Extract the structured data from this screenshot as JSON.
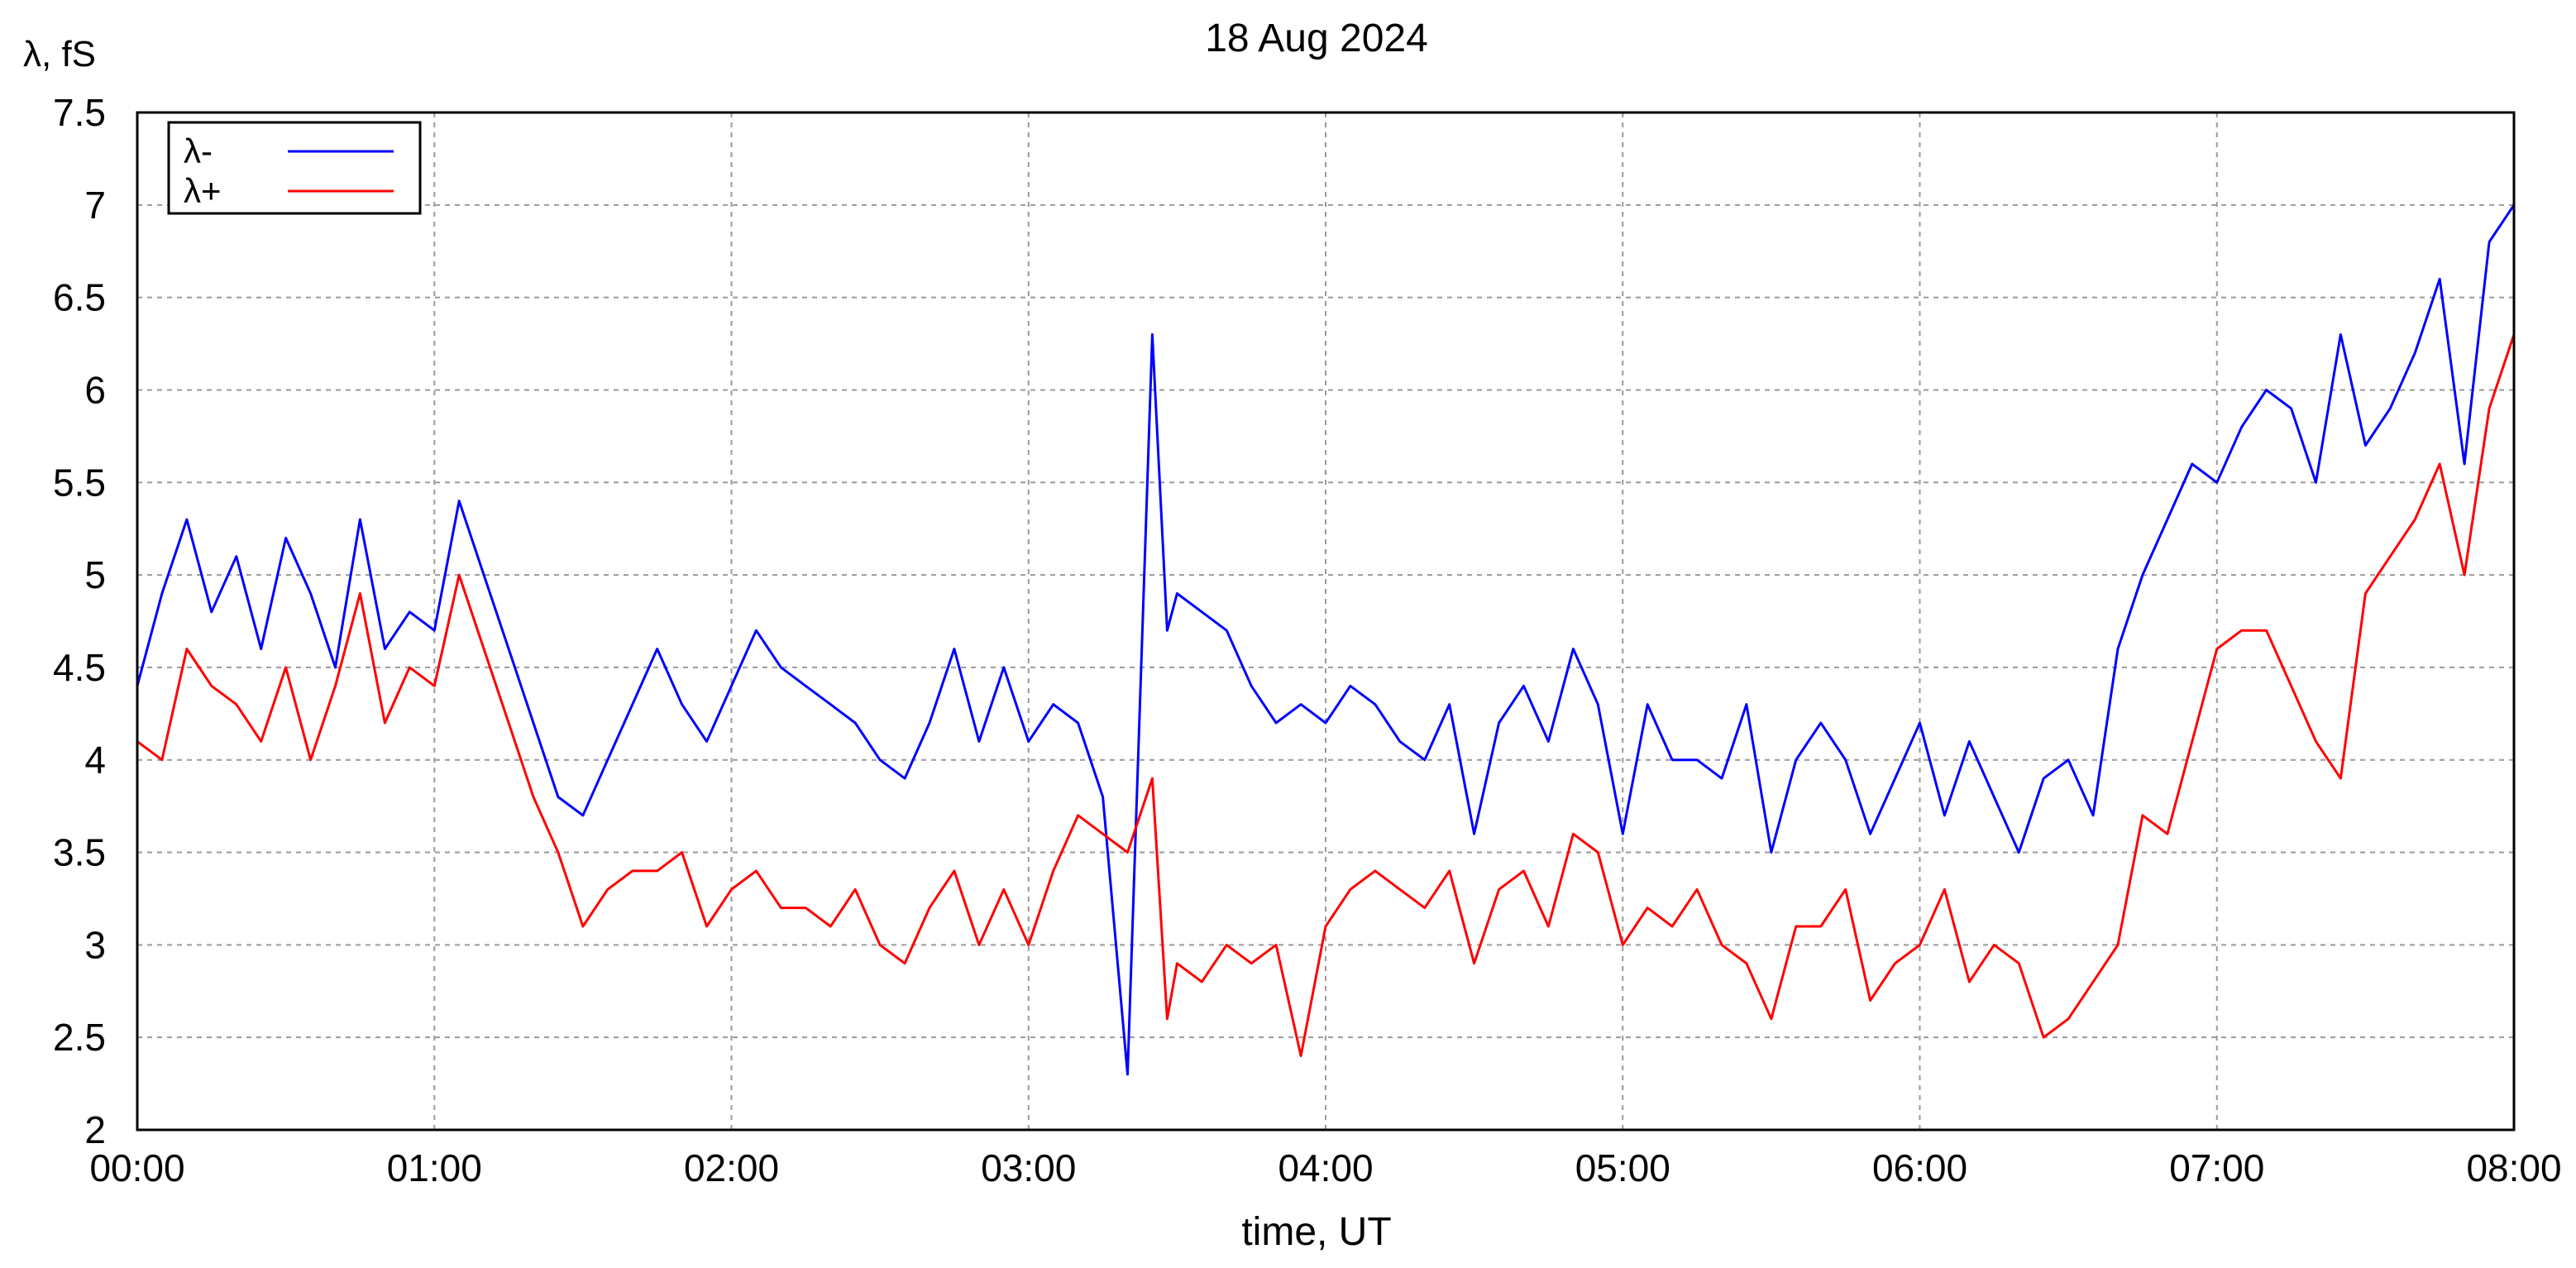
{
  "chart_data": {
    "type": "line",
    "title": "18 Aug 2024",
    "xlabel": "time, UT",
    "ylabel": "λ, fS",
    "xlim": [
      "00:00",
      "08:00"
    ],
    "ylim": [
      2,
      7.5
    ],
    "x_ticks": [
      "00:00",
      "01:00",
      "02:00",
      "03:00",
      "04:00",
      "05:00",
      "06:00",
      "07:00",
      "08:00"
    ],
    "y_ticks": [
      "2",
      "2.5",
      "3",
      "3.5",
      "4",
      "4.5",
      "5",
      "5.5",
      "6",
      "6.5",
      "7",
      "7.5"
    ],
    "grid": true,
    "legend_position": "top-left",
    "series": [
      {
        "name": "λ-",
        "color": "#0000ff",
        "x": [
          "00:00",
          "00:05",
          "00:10",
          "00:15",
          "00:20",
          "00:25",
          "00:30",
          "00:35",
          "00:40",
          "00:45",
          "00:50",
          "00:55",
          "01:00",
          "01:05",
          "01:10",
          "01:15",
          "01:20",
          "01:25",
          "01:30",
          "01:35",
          "01:40",
          "01:45",
          "01:50",
          "01:55",
          "02:00",
          "02:05",
          "02:10",
          "02:15",
          "02:20",
          "02:25",
          "02:30",
          "02:35",
          "02:40",
          "02:45",
          "02:50",
          "02:55",
          "03:00",
          "03:05",
          "03:10",
          "03:15",
          "03:20",
          "03:25",
          "03:28",
          "03:30",
          "03:35",
          "03:40",
          "03:45",
          "03:50",
          "03:55",
          "04:00",
          "04:05",
          "04:10",
          "04:15",
          "04:20",
          "04:25",
          "04:30",
          "04:35",
          "04:40",
          "04:45",
          "04:50",
          "04:55",
          "05:00",
          "05:05",
          "05:10",
          "05:15",
          "05:20",
          "05:25",
          "05:30",
          "05:35",
          "05:40",
          "05:45",
          "05:50",
          "05:55",
          "06:00",
          "06:05",
          "06:10",
          "06:15",
          "06:20",
          "06:25",
          "06:30",
          "06:35",
          "06:40",
          "06:45",
          "06:50",
          "06:55",
          "07:00",
          "07:05",
          "07:10",
          "07:15",
          "07:20",
          "07:25",
          "07:30",
          "07:35",
          "07:40",
          "07:45",
          "07:50",
          "07:55",
          "08:00"
        ],
        "values": [
          4.4,
          4.9,
          5.3,
          4.8,
          5.1,
          4.6,
          5.2,
          4.9,
          4.5,
          5.3,
          4.6,
          4.8,
          4.7,
          5.4,
          5.0,
          4.6,
          4.2,
          3.8,
          3.7,
          4.0,
          4.3,
          4.6,
          4.3,
          4.1,
          4.4,
          4.7,
          4.5,
          4.4,
          4.3,
          4.2,
          4.0,
          3.9,
          4.2,
          4.6,
          4.1,
          4.5,
          4.1,
          4.3,
          4.2,
          3.8,
          2.3,
          6.3,
          4.7,
          4.9,
          4.8,
          4.7,
          4.4,
          4.2,
          4.3,
          4.2,
          4.4,
          4.3,
          4.1,
          4.0,
          4.3,
          3.6,
          4.2,
          4.4,
          4.1,
          4.6,
          4.3,
          3.6,
          4.3,
          4.0,
          4.0,
          3.9,
          4.3,
          3.5,
          4.0,
          4.2,
          4.0,
          3.6,
          3.9,
          4.2,
          3.7,
          4.1,
          3.8,
          3.5,
          3.9,
          4.0,
          3.7,
          4.6,
          5.0,
          5.3,
          5.6,
          5.5,
          5.8,
          6.0,
          5.9,
          5.5,
          6.3,
          5.7,
          5.9,
          6.2,
          6.6,
          5.6,
          6.8,
          7.0
        ],
        "x_end_note": ""
      },
      {
        "name": "λ+",
        "color": "#ff0000",
        "x": [
          "00:00",
          "00:05",
          "00:10",
          "00:15",
          "00:20",
          "00:25",
          "00:30",
          "00:35",
          "00:40",
          "00:45",
          "00:50",
          "00:55",
          "01:00",
          "01:05",
          "01:10",
          "01:15",
          "01:20",
          "01:25",
          "01:30",
          "01:35",
          "01:40",
          "01:45",
          "01:50",
          "01:55",
          "02:00",
          "02:05",
          "02:10",
          "02:15",
          "02:20",
          "02:25",
          "02:30",
          "02:35",
          "02:40",
          "02:45",
          "02:50",
          "02:55",
          "03:00",
          "03:05",
          "03:10",
          "03:15",
          "03:20",
          "03:25",
          "03:28",
          "03:30",
          "03:35",
          "03:40",
          "03:45",
          "03:50",
          "03:55",
          "04:00",
          "04:05",
          "04:10",
          "04:15",
          "04:20",
          "04:25",
          "04:30",
          "04:35",
          "04:40",
          "04:45",
          "04:50",
          "04:55",
          "05:00",
          "05:05",
          "05:10",
          "05:15",
          "05:20",
          "05:25",
          "05:30",
          "05:35",
          "05:40",
          "05:45",
          "05:50",
          "05:55",
          "06:00",
          "06:05",
          "06:10",
          "06:15",
          "06:20",
          "06:25",
          "06:30",
          "06:35",
          "06:40",
          "06:45",
          "06:50",
          "06:55",
          "07:00",
          "07:05",
          "07:10",
          "07:15",
          "07:20",
          "07:25",
          "07:30",
          "07:35",
          "07:40",
          "07:45",
          "07:50",
          "07:55",
          "08:00"
        ],
        "values": [
          4.1,
          4.0,
          4.6,
          4.4,
          4.3,
          4.1,
          4.5,
          4.0,
          4.4,
          4.9,
          4.2,
          4.5,
          4.4,
          5.0,
          4.6,
          4.2,
          3.8,
          3.5,
          3.1,
          3.3,
          3.4,
          3.4,
          3.5,
          3.1,
          3.3,
          3.4,
          3.2,
          3.2,
          3.1,
          3.3,
          3.0,
          2.9,
          3.2,
          3.4,
          3.0,
          3.3,
          3.0,
          3.4,
          3.7,
          3.6,
          3.5,
          3.9,
          2.6,
          2.9,
          2.8,
          3.0,
          2.9,
          3.0,
          2.4,
          3.1,
          3.3,
          3.4,
          3.3,
          3.2,
          3.4,
          2.9,
          3.3,
          3.4,
          3.1,
          3.6,
          3.5,
          3.0,
          3.2,
          3.1,
          3.3,
          3.0,
          2.9,
          2.6,
          3.1,
          3.1,
          3.3,
          2.7,
          2.9,
          3.0,
          3.3,
          2.8,
          3.0,
          2.9,
          2.5,
          2.6,
          2.8,
          3.0,
          3.7,
          3.6,
          4.1,
          4.6,
          4.7,
          4.7,
          4.4,
          4.1,
          3.9,
          4.9,
          5.1,
          5.3,
          5.6,
          5.0,
          5.9,
          6.3
        ]
      }
    ]
  }
}
